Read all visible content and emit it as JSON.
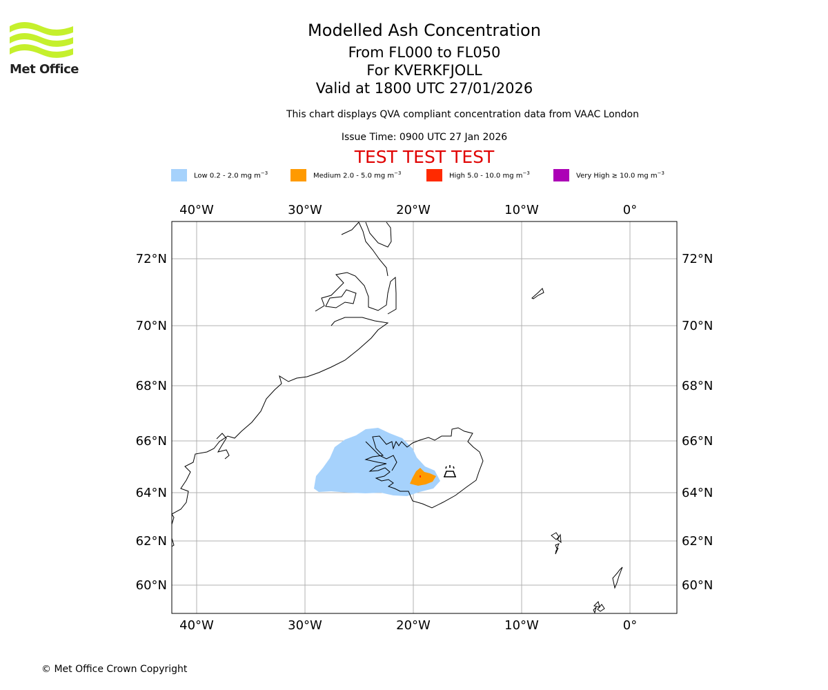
{
  "brand": {
    "name": "Met Office",
    "logo_color": "#c5f02c"
  },
  "header": {
    "title": "Modelled Ash Concentration",
    "levels": "From FL000 to FL050",
    "volcano": "For KVERKFJOLL",
    "validity": "Valid at 1800 UTC 27/01/2026",
    "compliance_note": "This chart displays QVA compliant concentration data from VAAC London",
    "issue_time": "Issue Time: 0900 UTC 27 Jan 2026",
    "test_banner": "TEST TEST TEST",
    "test_banner_color": "#e00000"
  },
  "legend": [
    {
      "label": "Low 0.2 - 2.0 mg m",
      "unit_exp": "−3",
      "color": "#a6d2fc"
    },
    {
      "label": "Medium 2.0 - 5.0 mg m",
      "unit_exp": "−3",
      "color": "#ff9a00"
    },
    {
      "label": "High 5.0 - 10.0 mg m",
      "unit_exp": "−3",
      "color": "#ff2a00"
    },
    {
      "label": "Very High  ≥  10.0 mg m",
      "unit_exp": "−3",
      "color": "#ac00b6"
    }
  ],
  "map": {
    "lon_labels": [
      "40°W",
      "30°W",
      "20°W",
      "10°W",
      "0°"
    ],
    "lat_labels": [
      "72°N",
      "70°N",
      "68°N",
      "66°N",
      "64°N",
      "62°N",
      "60°N"
    ],
    "lon_values": [
      -40,
      -30,
      -20,
      -10,
      0
    ],
    "lat_values": [
      72,
      70,
      68,
      66,
      64,
      62,
      60
    ],
    "extent": {
      "lon_min": -42.3,
      "lon_max": 4.3,
      "lat_min": 59.0,
      "lat_max": 73.2
    },
    "gridlines": true,
    "volcano_marker": {
      "name": "KVERKFJOLL",
      "lon": -16.7,
      "lat": 64.65,
      "icon": "volcano-icon"
    }
  },
  "footer": {
    "copyright": "© Met Office Crown Copyright"
  }
}
